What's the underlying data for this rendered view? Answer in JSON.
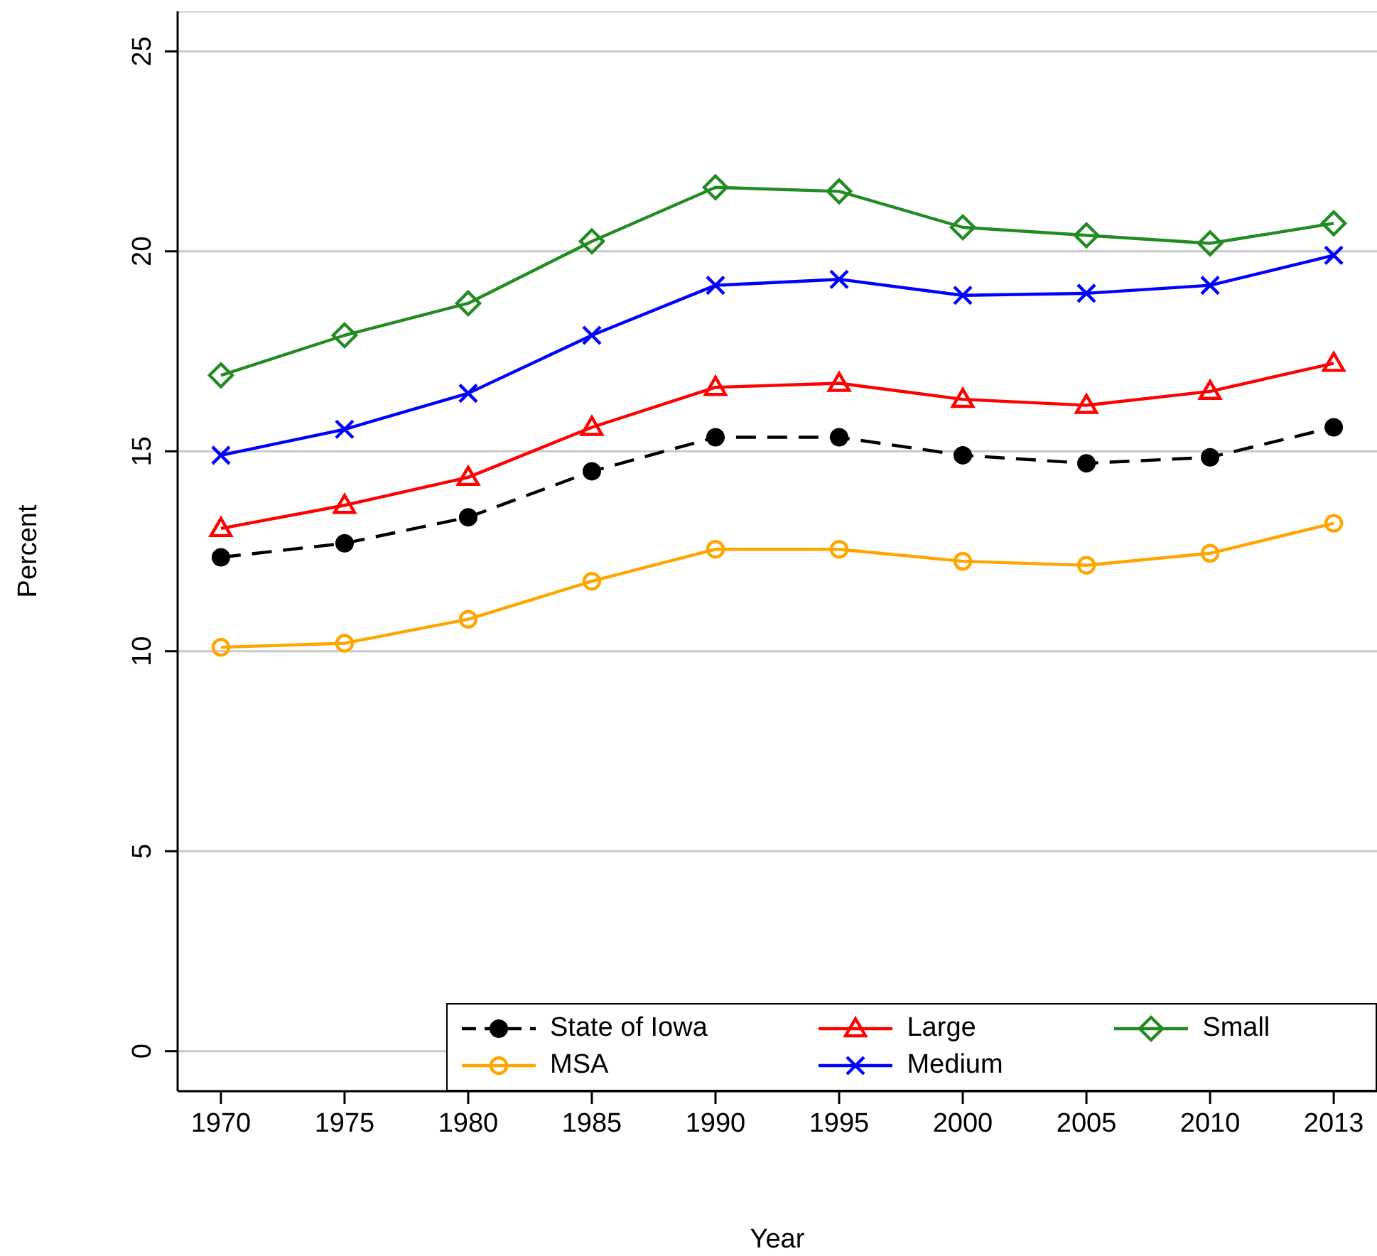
{
  "chart_data": {
    "type": "line",
    "xlabel": "Year",
    "ylabel": "Percent",
    "categories": [
      "1970",
      "1975",
      "1980",
      "1985",
      "1990",
      "1995",
      "2000",
      "2005",
      "2010",
      "2013"
    ],
    "series": [
      {
        "name": "State of Iowa",
        "color": "#000000",
        "marker": "circle",
        "line_style": "dashed",
        "values": [
          12.35,
          12.7,
          13.35,
          14.5,
          15.35,
          15.35,
          14.9,
          14.7,
          14.85,
          15.6
        ]
      },
      {
        "name": "MSA",
        "color": "#ffa500",
        "marker": "circle-open",
        "values": [
          10.1,
          10.2,
          10.8,
          11.75,
          12.55,
          12.55,
          12.25,
          12.15,
          12.45,
          13.2
        ]
      },
      {
        "name": "Large",
        "color": "#ff0000",
        "marker": "triangle",
        "values": [
          13.07,
          13.65,
          14.35,
          15.6,
          16.6,
          16.7,
          16.3,
          16.15,
          16.5,
          17.2
        ]
      },
      {
        "name": "Medium",
        "color": "#0000ff",
        "marker": "cross",
        "values": [
          14.9,
          15.55,
          16.45,
          17.9,
          19.15,
          19.3,
          18.9,
          18.95,
          19.15,
          19.9
        ]
      },
      {
        "name": "Small",
        "color": "#228b22",
        "marker": "diamond",
        "values": [
          16.9,
          17.9,
          18.7,
          20.25,
          21.6,
          21.5,
          20.6,
          20.4,
          20.2,
          20.7
        ]
      }
    ],
    "ylim": [
      -1,
      26
    ],
    "yticks": [
      0,
      5,
      10,
      15,
      20,
      25
    ],
    "grid": "y",
    "legend": "bottom right"
  }
}
